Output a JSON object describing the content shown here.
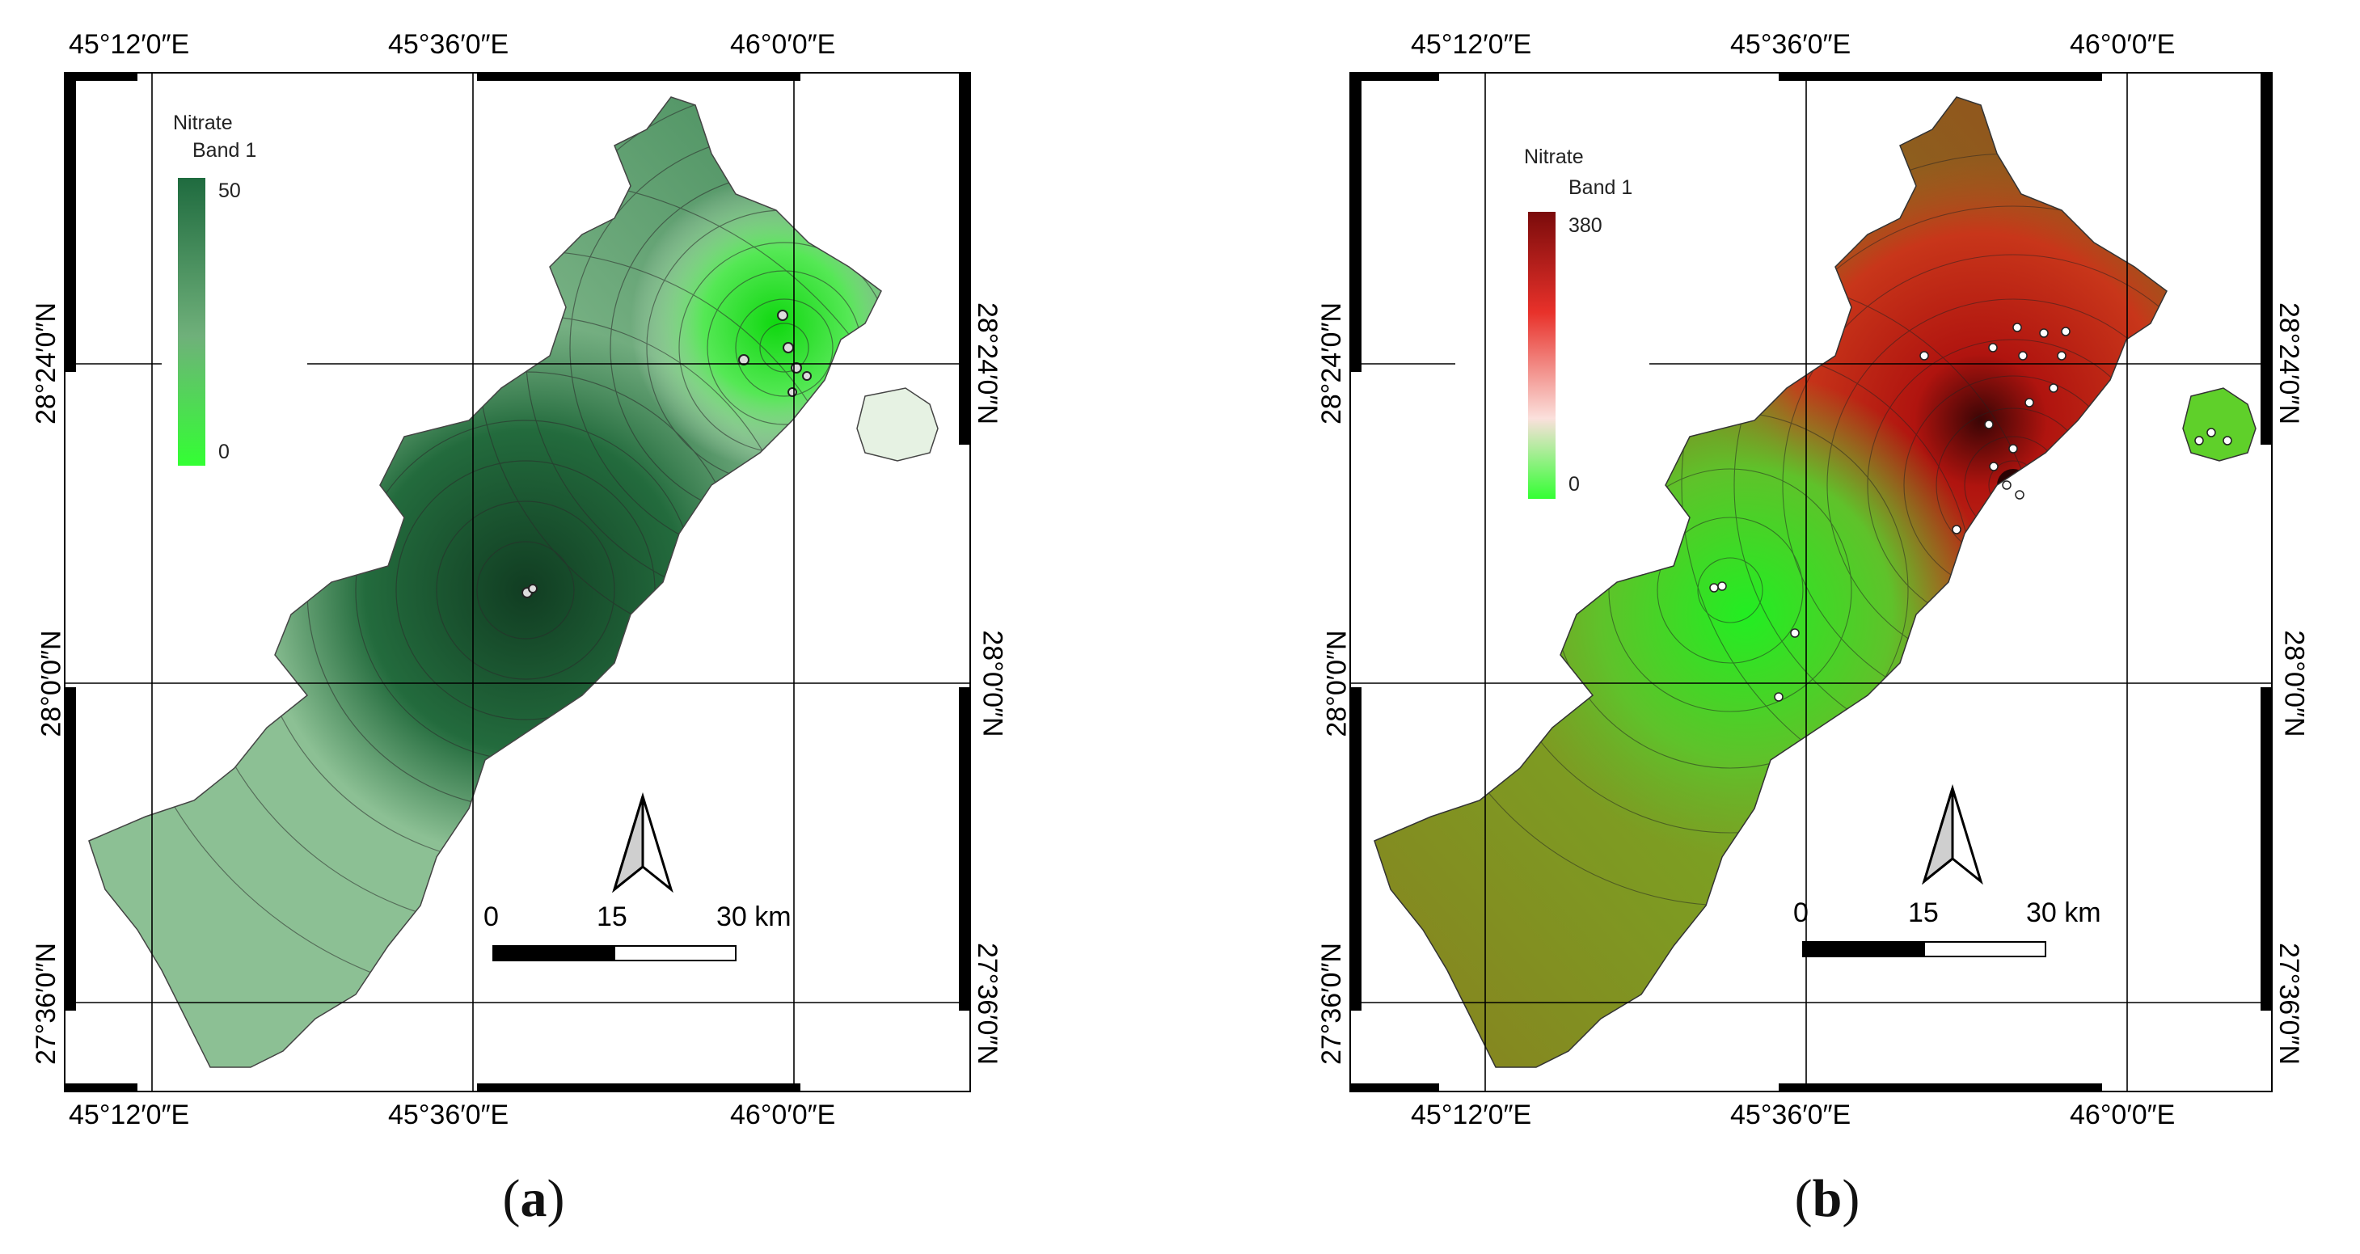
{
  "maps": [
    {
      "id": "a",
      "caption": {
        "open": "(",
        "letter": "a",
        "close": ")"
      },
      "legend": {
        "title": "Nitrate",
        "band": "Band 1",
        "max": "50",
        "min": "0",
        "color_high": "#1f6b3f",
        "color_low": "#33ff33"
      },
      "colors": {
        "low_region": "#e6f2e3",
        "hot_region": "#1a5230",
        "mid": "#6aa97a",
        "spot": "#22e022"
      },
      "x_labels": [
        "45°12′0″E",
        "45°36′0″E",
        "46°0′0″E"
      ],
      "y_labels": [
        "28°24′0″N",
        "28°0′0″N",
        "27°36′0″N"
      ],
      "scale": {
        "zero": "0",
        "mid": "15",
        "end": "30 km"
      }
    },
    {
      "id": "b",
      "caption": {
        "open": "(",
        "letter": "b",
        "close": ")"
      },
      "legend": {
        "title": "Nitrate",
        "band": "Band 1",
        "max": "380",
        "min": "0",
        "color_high": "#7a0b0b",
        "color_low": "#33ff33"
      },
      "colors": {
        "low_region": "#5fc22a",
        "hot_region": "#c21f14",
        "mid": "#8a7a1f",
        "spot": "#5fd02a"
      },
      "x_labels": [
        "45°12′0″E",
        "45°36′0″E",
        "46°0′0″E"
      ],
      "y_labels": [
        "28°24′0″N",
        "28°0′0″N",
        "27°36′0″N"
      ],
      "scale": {
        "zero": "0",
        "mid": "15",
        "end": "30 km"
      }
    }
  ]
}
